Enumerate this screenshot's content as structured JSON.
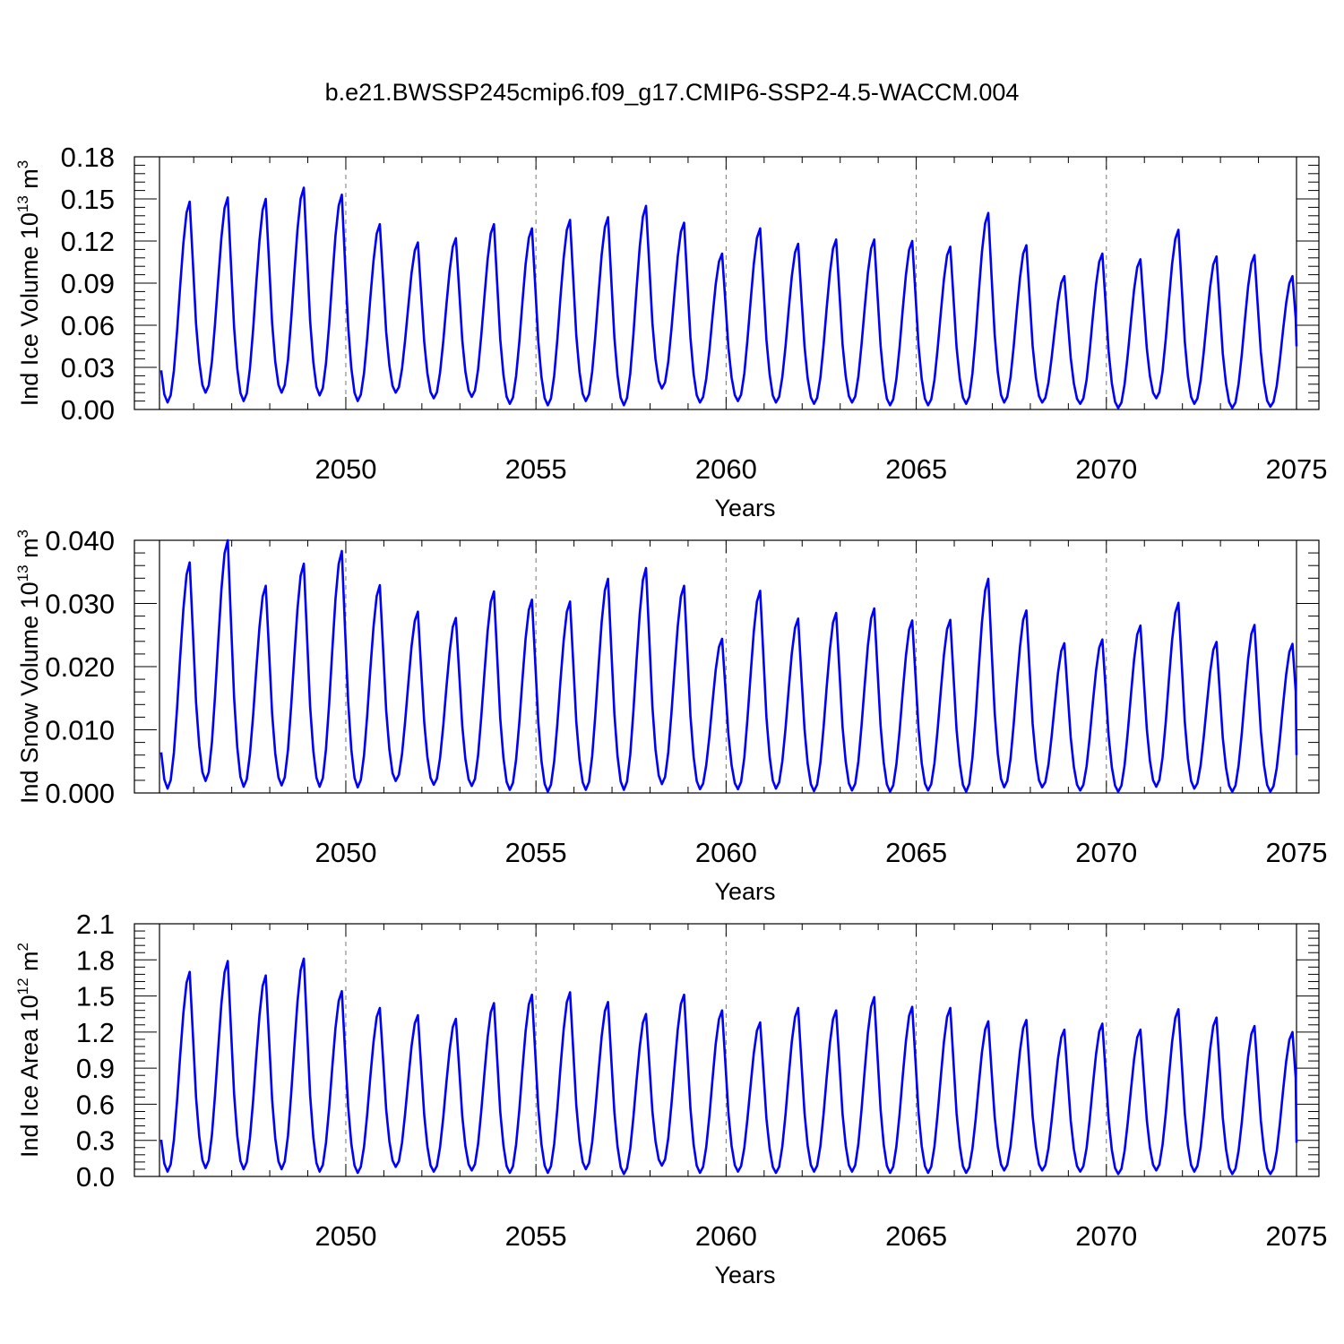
{
  "title": "b.e21.BWSSP245cmip6.f09_g17.CMIP6-SSP2-4.5-WACCM.004",
  "series_color": "#0000ff",
  "chart_data": [
    {
      "type": "line",
      "ylabel": {
        "main": "Ind Ice Volume 10",
        "exp": "13",
        "unit": " m",
        "unit_exp": "3"
      },
      "xlabel": "Years",
      "xlim": [
        2045.1,
        2075
      ],
      "ylim": [
        0,
        0.18
      ],
      "xticks": [
        2050,
        2055,
        2060,
        2065,
        2070,
        2075
      ],
      "xtick_labels": [
        "2050",
        "2055",
        "2060",
        "2065",
        "2070",
        "2075"
      ],
      "yticks": [
        0,
        0.03,
        0.06,
        0.09,
        0.12,
        0.15,
        0.18
      ],
      "ytick_labels": [
        "0.00",
        "0.03",
        "0.06",
        "0.09",
        "0.12",
        "0.15",
        "0.18"
      ],
      "grid": "dashed vertical lines at labeled years",
      "series": [
        {
          "x_start": 2045.1,
          "x_end": 2075,
          "annual_peaks": [
            0.148,
            0.151,
            0.15,
            0.158,
            0.153,
            0.132,
            0.119,
            0.122,
            0.132,
            0.129,
            0.135,
            0.137,
            0.145,
            0.133,
            0.111,
            0.129,
            0.118,
            0.121,
            0.121,
            0.12,
            0.116,
            0.14,
            0.117,
            0.095,
            0.111,
            0.107,
            0.128,
            0.109,
            0.11,
            0.095
          ],
          "annual_minima": [
            0.005,
            0.012,
            0.006,
            0.012,
            0.01,
            0.006,
            0.012,
            0.008,
            0.009,
            0.004,
            0.003,
            0.006,
            0.003,
            0.015,
            0.005,
            0.006,
            0.005,
            0.004,
            0.005,
            0.003,
            0.003,
            0.004,
            0.005,
            0.005,
            0.004,
            0.001,
            0.008,
            0.004,
            0.001,
            0.002
          ],
          "end_value": 0.045
        }
      ]
    },
    {
      "type": "line",
      "ylabel": {
        "main": "Ind Snow Volume 10",
        "exp": "13",
        "unit": " m",
        "unit_exp": "3"
      },
      "xlabel": "Years",
      "xlim": [
        2045.1,
        2075
      ],
      "ylim": [
        0,
        0.04
      ],
      "xticks": [
        2050,
        2055,
        2060,
        2065,
        2070,
        2075
      ],
      "xtick_labels": [
        "2050",
        "2055",
        "2060",
        "2065",
        "2070",
        "2075"
      ],
      "yticks": [
        0,
        0.01,
        0.02,
        0.03,
        0.04
      ],
      "ytick_labels": [
        "0.000",
        "0.010",
        "0.020",
        "0.030",
        "0.040"
      ],
      "grid": "dashed vertical lines at labeled years",
      "series": [
        {
          "x_start": 2045.1,
          "x_end": 2075,
          "annual_peaks": [
            0.0365,
            0.04,
            0.0328,
            0.0363,
            0.0383,
            0.0329,
            0.0287,
            0.0277,
            0.0319,
            0.0306,
            0.0303,
            0.0339,
            0.0356,
            0.0328,
            0.0244,
            0.032,
            0.0276,
            0.0285,
            0.0292,
            0.0273,
            0.0274,
            0.0339,
            0.0289,
            0.0237,
            0.0243,
            0.0265,
            0.0301,
            0.0239,
            0.0266,
            0.0236
          ],
          "annual_minima": [
            0.0007,
            0.0019,
            0.001,
            0.0012,
            0.001,
            0.0009,
            0.0019,
            0.0013,
            0.0011,
            0.0005,
            0.0002,
            0.0005,
            0.0005,
            0.0014,
            0.0006,
            0.0006,
            0.0007,
            0.0003,
            0.0004,
            0.0002,
            0.0004,
            0.0002,
            0.0009,
            0.0009,
            0.0004,
            0.0002,
            0.001,
            0.0007,
            0.0002,
            0.0002
          ],
          "end_value": 0.006
        }
      ]
    },
    {
      "type": "line",
      "ylabel": {
        "main": "Ind Ice Area 10",
        "exp": "12",
        "unit": " m",
        "unit_exp": "2"
      },
      "xlabel": "Years",
      "xlim": [
        2045.1,
        2075
      ],
      "ylim": [
        0,
        2.1
      ],
      "xticks": [
        2050,
        2055,
        2060,
        2065,
        2070,
        2075
      ],
      "xtick_labels": [
        "2050",
        "2055",
        "2060",
        "2065",
        "2070",
        "2075"
      ],
      "yticks": [
        0,
        0.3,
        0.6,
        0.9,
        1.2,
        1.5,
        1.8,
        2.1
      ],
      "ytick_labels": [
        "0.0",
        "0.3",
        "0.6",
        "0.9",
        "1.2",
        "1.5",
        "1.8",
        "2.1"
      ],
      "grid": "dashed vertical lines at labeled years",
      "series": [
        {
          "x_start": 2045.1,
          "x_end": 2075,
          "annual_peaks": [
            1.7,
            1.79,
            1.67,
            1.81,
            1.54,
            1.4,
            1.34,
            1.31,
            1.44,
            1.51,
            1.53,
            1.45,
            1.35,
            1.51,
            1.38,
            1.28,
            1.4,
            1.38,
            1.49,
            1.41,
            1.4,
            1.29,
            1.3,
            1.22,
            1.27,
            1.22,
            1.39,
            1.32,
            1.25,
            1.2
          ],
          "annual_minima": [
            0.04,
            0.07,
            0.06,
            0.06,
            0.04,
            0.03,
            0.08,
            0.04,
            0.05,
            0.03,
            0.03,
            0.06,
            0.02,
            0.09,
            0.03,
            0.04,
            0.03,
            0.04,
            0.04,
            0.03,
            0.03,
            0.03,
            0.05,
            0.05,
            0.04,
            0.02,
            0.05,
            0.04,
            0.02,
            0.02
          ],
          "end_value": 0.28
        }
      ]
    }
  ]
}
